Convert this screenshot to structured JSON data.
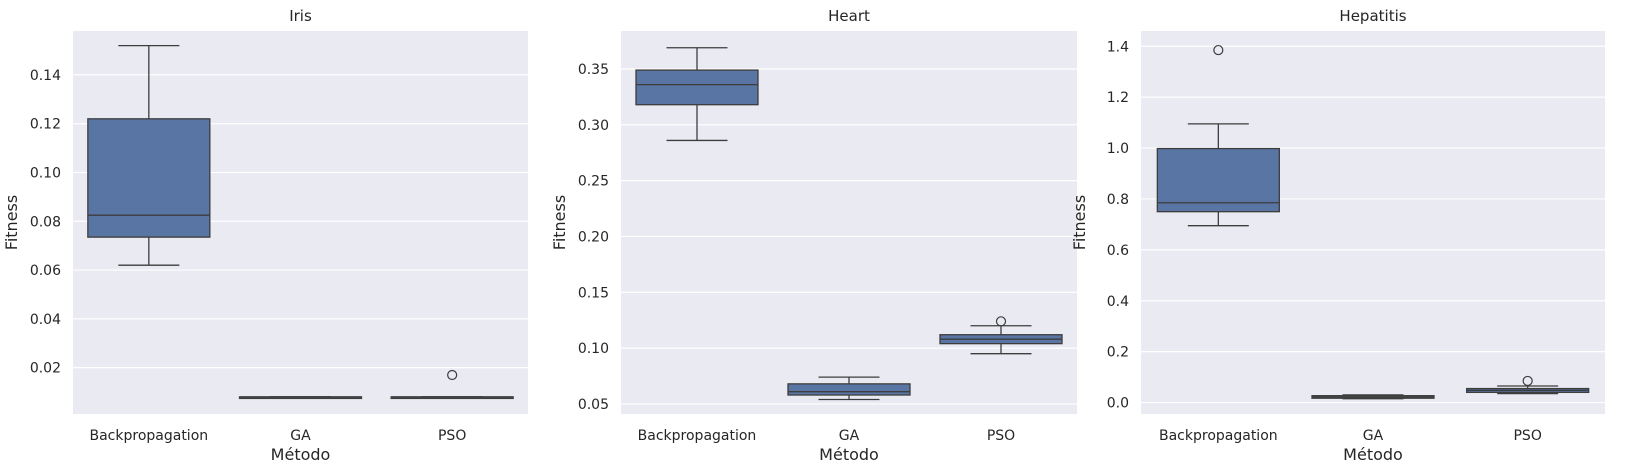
{
  "chart_data": [
    {
      "type": "box",
      "title": "Iris",
      "xlabel": "Método",
      "ylabel": "Fitness",
      "categories": [
        "Backpropagation",
        "GA",
        "PSO"
      ],
      "ylim": [
        0.001,
        0.158
      ],
      "yticks": [
        0.02,
        0.04,
        0.06,
        0.08,
        0.1,
        0.12,
        0.14
      ],
      "ytick_labels": [
        "0.02",
        "0.04",
        "0.06",
        "0.08",
        "0.10",
        "0.12",
        "0.14"
      ],
      "grid": true,
      "boxes": [
        {
          "min": 0.062,
          "q1": 0.0735,
          "median": 0.0825,
          "q3": 0.122,
          "max": 0.152,
          "fliers": []
        },
        {
          "min": 0.008,
          "q1": 0.008,
          "median": 0.008,
          "q3": 0.008,
          "max": 0.008,
          "fliers": []
        },
        {
          "min": 0.008,
          "q1": 0.008,
          "median": 0.008,
          "q3": 0.008,
          "max": 0.008,
          "fliers": [
            0.017
          ]
        }
      ]
    },
    {
      "type": "box",
      "title": "Heart",
      "xlabel": "Método",
      "ylabel": "Fitness",
      "categories": [
        "Backpropagation",
        "GA",
        "PSO"
      ],
      "ylim": [
        0.041,
        0.384
      ],
      "yticks": [
        0.05,
        0.1,
        0.15,
        0.2,
        0.25,
        0.3,
        0.35
      ],
      "ytick_labels": [
        "0.05",
        "0.10",
        "0.15",
        "0.20",
        "0.25",
        "0.30",
        "0.35"
      ],
      "grid": true,
      "boxes": [
        {
          "min": 0.286,
          "q1": 0.318,
          "median": 0.336,
          "q3": 0.349,
          "max": 0.369,
          "fliers": []
        },
        {
          "min": 0.054,
          "q1": 0.058,
          "median": 0.061,
          "q3": 0.068,
          "max": 0.074,
          "fliers": []
        },
        {
          "min": 0.095,
          "q1": 0.104,
          "median": 0.108,
          "q3": 0.112,
          "max": 0.12,
          "fliers": [
            0.124
          ]
        }
      ]
    },
    {
      "type": "box",
      "title": "Hepatitis",
      "xlabel": "Método",
      "ylabel": "Fitness",
      "categories": [
        "Backpropagation",
        "GA",
        "PSO"
      ],
      "ylim": [
        -0.045,
        1.46
      ],
      "yticks": [
        0.0,
        0.2,
        0.4,
        0.6,
        0.8,
        1.0,
        1.2,
        1.4
      ],
      "ytick_labels": [
        "0.0",
        "0.2",
        "0.4",
        "0.6",
        "0.8",
        "1.0",
        "1.2",
        "1.4"
      ],
      "grid": true,
      "boxes": [
        {
          "min": 0.695,
          "q1": 0.75,
          "median": 0.785,
          "q3": 0.998,
          "max": 1.095,
          "fliers": [
            1.385
          ]
        },
        {
          "min": 0.015,
          "q1": 0.017,
          "median": 0.022,
          "q3": 0.027,
          "max": 0.03,
          "fliers": []
        },
        {
          "min": 0.035,
          "q1": 0.04,
          "median": 0.048,
          "q3": 0.055,
          "max": 0.065,
          "fliers": [
            0.085
          ]
        }
      ]
    }
  ]
}
